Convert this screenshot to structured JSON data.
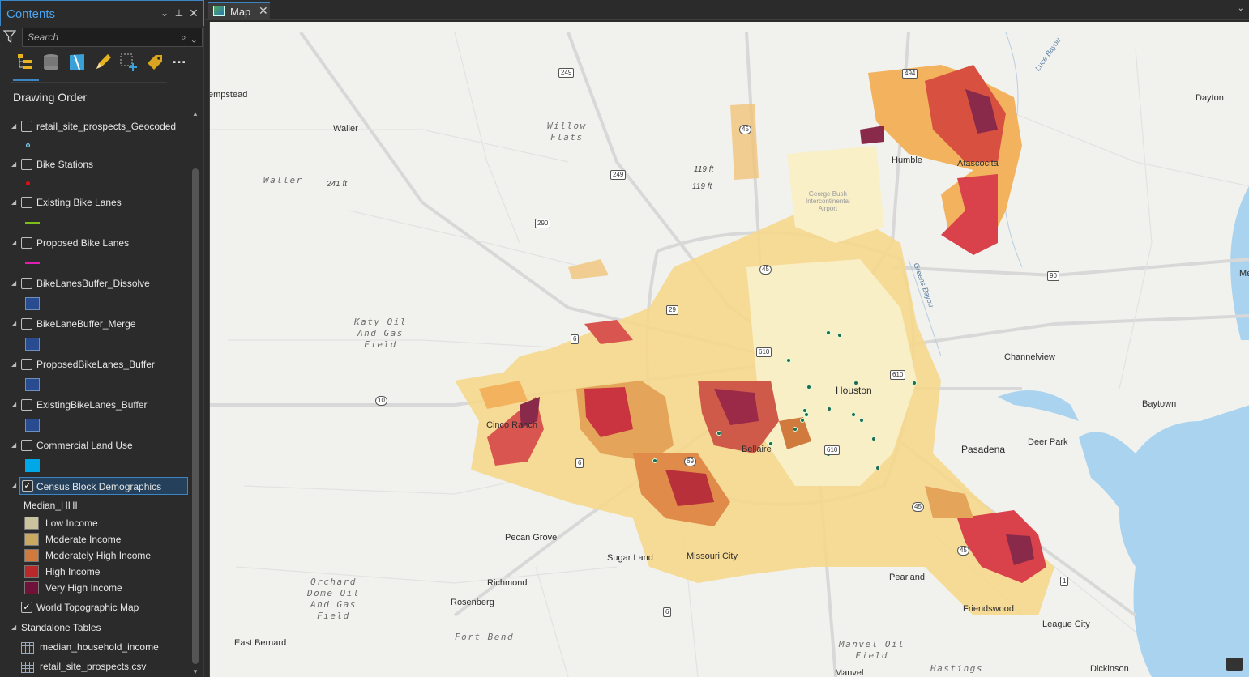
{
  "contents": {
    "title": "Contents",
    "search_placeholder": "Search",
    "drawing_order_heading": "Drawing Order",
    "layers": [
      {
        "name": "retail_site_prospects_Geocoded",
        "checked": false,
        "symbol": "point",
        "color": "#1a6b5a"
      },
      {
        "name": "Bike Stations",
        "checked": false,
        "symbol": "point",
        "color": "#e01010"
      },
      {
        "name": "Existing Bike Lanes",
        "checked": false,
        "symbol": "line",
        "color": "#7dbd1c"
      },
      {
        "name": "Proposed Bike Lanes",
        "checked": false,
        "symbol": "line",
        "color": "#e020b0"
      },
      {
        "name": "BikeLanesBuffer_Dissolve",
        "checked": false,
        "symbol": "fill",
        "color": "#284c8f"
      },
      {
        "name": "BikeLaneBuffer_Merge",
        "checked": false,
        "symbol": "fill",
        "color": "#284c8f"
      },
      {
        "name": "ProposedBikeLanes_Buffer",
        "checked": false,
        "symbol": "fill",
        "color": "#284c8f"
      },
      {
        "name": "ExistingBikeLanes_Buffer",
        "checked": false,
        "symbol": "fill",
        "color": "#284c8f"
      },
      {
        "name": "Commercial Land Use",
        "checked": false,
        "symbol": "fill",
        "color": "#00a8e8"
      },
      {
        "name": "Census Block Demographics",
        "checked": true,
        "selected": true
      }
    ],
    "legend": {
      "field": "Median_HHI",
      "classes": [
        {
          "label": "Low Income",
          "color": "#cbc3a0"
        },
        {
          "label": "Moderate Income",
          "color": "#c9a862"
        },
        {
          "label": "Moderately High Income",
          "color": "#d07a3e"
        },
        {
          "label": "High Income",
          "color": "#b82a2a"
        },
        {
          "label": "Very High Income",
          "color": "#6e1238"
        }
      ]
    },
    "basemap": {
      "name": "World Topographic Map",
      "checked": true
    },
    "standalone_heading": "Standalone Tables",
    "tables": [
      "median_household_income",
      "retail_site_prospects.csv"
    ]
  },
  "map": {
    "tab_label": "Map",
    "places": [
      "empstead",
      "Waller",
      "Humble",
      "Atascocita",
      "Dayton",
      "Channelview",
      "Baytown",
      "Cinco Ranch",
      "Houston",
      "Pasadena",
      "Deer Park",
      "Bellaire",
      "Pecan Grove",
      "Sugar Land",
      "Missouri City",
      "Richmond",
      "Rosenberg",
      "Pearland",
      "Friendswood",
      "League City",
      "East Bernard",
      "Dickinson",
      "Manvel",
      "Me"
    ],
    "features": {
      "willow_flats": "Willow\nFlats",
      "waller_area": "Waller",
      "katy": "Katy Oil\nAnd Gas\nField",
      "orchard": "Orchard\nDome Oil\nAnd Gas\nField",
      "fort_bend": "Fort Bend",
      "manvel_oil": "Manvel Oil\nField",
      "hastings": "Hastings",
      "airport": "George Bush\nIntercontinental\nAirport",
      "luce_bayou": "Luce Bayou",
      "greens_bayou": "Greens Bayou"
    },
    "elevations": [
      "241 ft",
      "119 ft",
      "119 ft"
    ],
    "shields": [
      "249",
      "494",
      "45",
      "249",
      "290",
      "45",
      "90",
      "29",
      "6",
      "610",
      "10",
      "610",
      "6",
      "69",
      "610",
      "45",
      "45",
      "1",
      "6"
    ],
    "accent_color": "#3d86c6"
  }
}
